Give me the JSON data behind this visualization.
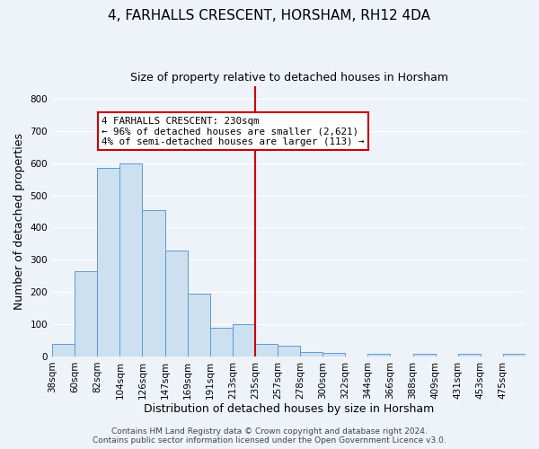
{
  "title": "4, FARHALLS CRESCENT, HORSHAM, RH12 4DA",
  "subtitle": "Size of property relative to detached houses in Horsham",
  "xlabel": "Distribution of detached houses by size in Horsham",
  "ylabel": "Number of detached properties",
  "bar_values": [
    38,
    265,
    585,
    600,
    455,
    330,
    195,
    90,
    100,
    38,
    32,
    15,
    10,
    0,
    8,
    0,
    8,
    0,
    8,
    0,
    8
  ],
  "bar_labels": [
    "38sqm",
    "60sqm",
    "82sqm",
    "104sqm",
    "126sqm",
    "147sqm",
    "169sqm",
    "191sqm",
    "213sqm",
    "235sqm",
    "257sqm",
    "278sqm",
    "300sqm",
    "322sqm",
    "344sqm",
    "366sqm",
    "388sqm",
    "409sqm",
    "431sqm",
    "453sqm",
    "475sqm"
  ],
  "bar_color": "#cce0f0",
  "bar_edge_color": "#5b9bd5",
  "vline_label_idx": 9,
  "vline_color": "#cc0000",
  "ylim": [
    0,
    840
  ],
  "yticks": [
    0,
    100,
    200,
    300,
    400,
    500,
    600,
    700,
    800
  ],
  "annotation_title": "4 FARHALLS CRESCENT: 230sqm",
  "annotation_line1": "← 96% of detached houses are smaller (2,621)",
  "annotation_line2": "4% of semi-detached houses are larger (113) →",
  "annotation_box_color": "#ffffff",
  "annotation_box_edge": "#cc0000",
  "footer1": "Contains HM Land Registry data © Crown copyright and database right 2024.",
  "footer2": "Contains public sector information licensed under the Open Government Licence v3.0.",
  "background_color": "#eef2f9",
  "grid_color": "#ffffff",
  "title_fontsize": 11,
  "subtitle_fontsize": 9,
  "axis_label_fontsize": 9,
  "tick_fontsize": 7.5,
  "footer_fontsize": 6.5
}
